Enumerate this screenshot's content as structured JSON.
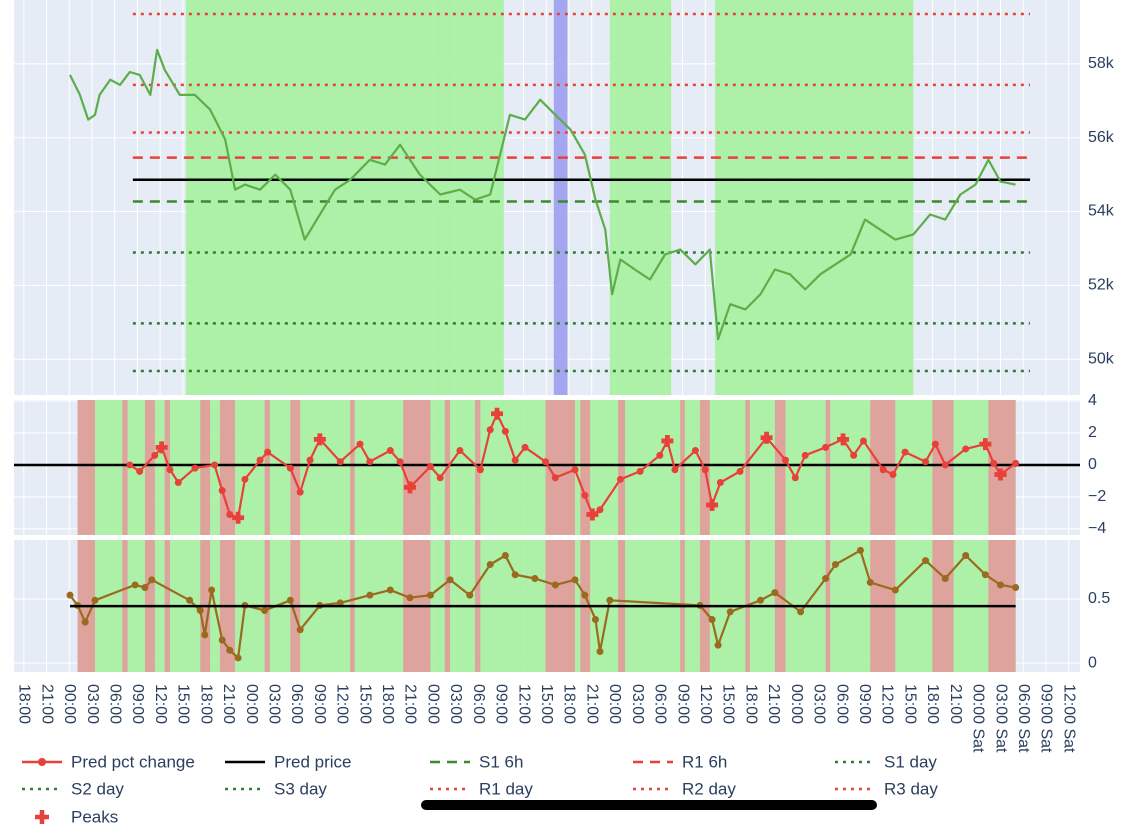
{
  "chart_data": {
    "type": "line",
    "xlim": [
      -1.3,
      139.5
    ],
    "xticks": [
      {
        "value": 0,
        "label": "18:00"
      },
      {
        "value": 3,
        "label": "21:00"
      },
      {
        "value": 6,
        "label": "00:00"
      },
      {
        "value": 9,
        "label": "03:00"
      },
      {
        "value": 12,
        "label": "06:00"
      },
      {
        "value": 15,
        "label": "09:00"
      },
      {
        "value": 18,
        "label": "12:00"
      },
      {
        "value": 21,
        "label": "15:00"
      },
      {
        "value": 24,
        "label": "18:00"
      },
      {
        "value": 27,
        "label": "21:00"
      },
      {
        "value": 30,
        "label": "00:00"
      },
      {
        "value": 33,
        "label": "03:00"
      },
      {
        "value": 36,
        "label": "06:00"
      },
      {
        "value": 39,
        "label": "09:00"
      },
      {
        "value": 42,
        "label": "12:00"
      },
      {
        "value": 45,
        "label": "15:00"
      },
      {
        "value": 48,
        "label": "18:00"
      },
      {
        "value": 51,
        "label": "21:00"
      },
      {
        "value": 54,
        "label": "00:00"
      },
      {
        "value": 57,
        "label": "03:00"
      },
      {
        "value": 60,
        "label": "06:00"
      },
      {
        "value": 63,
        "label": "09:00"
      },
      {
        "value": 66,
        "label": "12:00"
      },
      {
        "value": 69,
        "label": "15:00"
      },
      {
        "value": 72,
        "label": "18:00"
      },
      {
        "value": 75,
        "label": "21:00"
      },
      {
        "value": 78,
        "label": "00:00"
      },
      {
        "value": 81,
        "label": "03:00"
      },
      {
        "value": 84,
        "label": "06:00"
      },
      {
        "value": 87,
        "label": "09:00"
      },
      {
        "value": 90,
        "label": "12:00"
      },
      {
        "value": 93,
        "label": "15:00"
      },
      {
        "value": 96,
        "label": "18:00"
      },
      {
        "value": 99,
        "label": "21:00"
      },
      {
        "value": 102,
        "label": "00:00"
      },
      {
        "value": 105,
        "label": "03:00"
      },
      {
        "value": 108,
        "label": "06:00"
      },
      {
        "value": 111,
        "label": "09:00"
      },
      {
        "value": 114,
        "label": "12:00"
      },
      {
        "value": 117,
        "label": "15:00"
      },
      {
        "value": 120,
        "label": "18:00"
      },
      {
        "value": 123,
        "label": "21:00"
      },
      {
        "value": 126,
        "label": "00:00 Sat"
      },
      {
        "value": 129,
        "label": "03:00 Sat"
      },
      {
        "value": 132,
        "label": "06:00 Sat"
      },
      {
        "value": 135,
        "label": "09:00 Sat"
      },
      {
        "value": 138,
        "label": "12:00 Sat"
      }
    ],
    "ylim": [
      49030,
      59730
    ],
    "yticks": [
      {
        "value": 50000,
        "label": "50k"
      },
      {
        "value": 52000,
        "label": "52k"
      },
      {
        "value": 54000,
        "label": "54k"
      },
      {
        "value": 56000,
        "label": "56k"
      },
      {
        "value": 58000,
        "label": "58k"
      }
    ],
    "y2lim": [
      -4.38,
      4.06
    ],
    "y2ticks": [
      {
        "value": -4,
        "label": "−4"
      },
      {
        "value": -2,
        "label": "−2"
      },
      0,
      2,
      4
    ],
    "y2_zeroline": true,
    "y3lim": [
      -0.07,
      0.961
    ],
    "y3ticks": [
      0,
      0.5
    ],
    "grid": true,
    "regions": [
      {
        "axes": [
          "y"
        ],
        "x": [
          21.4,
          63.4
        ],
        "color": "#a6f2a0"
      },
      {
        "axes": [
          "y"
        ],
        "x": [
          77.4,
          85.5
        ],
        "color": "#a6f2a0"
      },
      {
        "axes": [
          "y"
        ],
        "x": [
          91.3,
          117.5
        ],
        "color": "#a6f2a0"
      },
      {
        "axes": [
          "y"
        ],
        "x": [
          70.0,
          71.8
        ],
        "color": "#9c9ef0"
      },
      {
        "axes": [
          "y2",
          "y3"
        ],
        "x": [
          7.1,
          131.0
        ],
        "color": "#a6f2a0"
      },
      {
        "axes": [
          "y2",
          "y3"
        ],
        "x": [
          7.1,
          9.4
        ],
        "color": "#e39a9a"
      },
      {
        "axes": [
          "y2",
          "y3"
        ],
        "x": [
          13.0,
          13.7
        ],
        "color": "#e39a9a"
      },
      {
        "axes": [
          "y2",
          "y3"
        ],
        "x": [
          16.0,
          17.3
        ],
        "color": "#e39a9a"
      },
      {
        "axes": [
          "y2",
          "y3"
        ],
        "x": [
          18.6,
          19.3
        ],
        "color": "#e39a9a"
      },
      {
        "axes": [
          "y2",
          "y3"
        ],
        "x": [
          23.3,
          24.6
        ],
        "color": "#e39a9a"
      },
      {
        "axes": [
          "y2",
          "y3"
        ],
        "x": [
          25.9,
          27.9
        ],
        "color": "#e39a9a"
      },
      {
        "axes": [
          "y2",
          "y3"
        ],
        "x": [
          31.8,
          32.5
        ],
        "color": "#e39a9a"
      },
      {
        "axes": [
          "y2",
          "y3"
        ],
        "x": [
          35.2,
          36.5
        ],
        "color": "#e39a9a"
      },
      {
        "axes": [
          "y2",
          "y3"
        ],
        "x": [
          43.1,
          43.7
        ],
        "color": "#e39a9a"
      },
      {
        "axes": [
          "y2",
          "y3"
        ],
        "x": [
          50.1,
          53.7
        ],
        "color": "#e39a9a"
      },
      {
        "axes": [
          "y2",
          "y3"
        ],
        "x": [
          55.6,
          56.3
        ],
        "color": "#e39a9a"
      },
      {
        "axes": [
          "y2",
          "y3"
        ],
        "x": [
          59.6,
          60.3
        ],
        "color": "#e39a9a"
      },
      {
        "axes": [
          "y2",
          "y3"
        ],
        "x": [
          68.9,
          72.8
        ],
        "color": "#e39a9a"
      },
      {
        "axes": [
          "y2",
          "y3"
        ],
        "x": [
          73.5,
          74.8
        ],
        "color": "#e39a9a"
      },
      {
        "axes": [
          "y2",
          "y3"
        ],
        "x": [
          78.5,
          79.4
        ],
        "color": "#e39a9a"
      },
      {
        "axes": [
          "y2",
          "y3"
        ],
        "x": [
          86.7,
          87.3
        ],
        "color": "#e39a9a"
      },
      {
        "axes": [
          "y2",
          "y3"
        ],
        "x": [
          89.3,
          90.6
        ],
        "color": "#e39a9a"
      },
      {
        "axes": [
          "y2",
          "y3"
        ],
        "x": [
          95.3,
          95.9
        ],
        "color": "#e39a9a"
      },
      {
        "axes": [
          "y2",
          "y3"
        ],
        "x": [
          99.2,
          100.6
        ],
        "color": "#e39a9a"
      },
      {
        "axes": [
          "y2",
          "y3"
        ],
        "x": [
          105.9,
          106.5
        ],
        "color": "#e39a9a"
      },
      {
        "axes": [
          "y2",
          "y3"
        ],
        "x": [
          111.8,
          115.1
        ],
        "color": "#e39a9a"
      },
      {
        "axes": [
          "y2",
          "y3"
        ],
        "x": [
          120.0,
          122.8
        ],
        "color": "#e39a9a"
      },
      {
        "axes": [
          "y2",
          "y3"
        ],
        "x": [
          127.4,
          131.0
        ],
        "color": "#e39a9a"
      }
    ],
    "series": [
      {
        "name": "Pred pct change",
        "color": "#e8413a",
        "mode": "lines+markers",
        "axis": "y2",
        "x": [
          14.0,
          15.3,
          17.3,
          18.2,
          19.3,
          20.4,
          22.6,
          25.2,
          26.2,
          27.2,
          28.3,
          29.2,
          31.2,
          32.2,
          35.2,
          36.5,
          37.8,
          39.1,
          41.8,
          44.4,
          45.7,
          48.4,
          49.7,
          51.0,
          53.7,
          55.0,
          57.6,
          60.3,
          61.6,
          62.5,
          63.6,
          64.9,
          66.2,
          68.9,
          70.2,
          72.8,
          74.1,
          75.1,
          76.1,
          78.8,
          81.4,
          84.0,
          85.0,
          86.0,
          88.7,
          90.0,
          90.9,
          92.0,
          94.6,
          98.1,
          100.6,
          101.9,
          103.2,
          105.9,
          108.2,
          109.6,
          110.9,
          113.5,
          114.8,
          116.4,
          119.1,
          120.4,
          121.7,
          124.4,
          127.0,
          128.1,
          129.0,
          131.0
        ],
        "values": [
          0,
          -0.4,
          0.6,
          1.1,
          -0.3,
          -1.1,
          -0.2,
          0,
          -1.6,
          -3.1,
          -3.3,
          -0.9,
          0.3,
          0.8,
          -0.2,
          -1.7,
          0.3,
          1.6,
          0.2,
          1.3,
          0.2,
          0.9,
          0.2,
          -1.4,
          -0.1,
          -0.8,
          0.9,
          -0.3,
          2.2,
          3.2,
          2.1,
          0.3,
          1.1,
          0.2,
          -0.8,
          -0.3,
          -1.9,
          -3.1,
          -2.8,
          -0.9,
          -0.4,
          0.6,
          1.5,
          -0.3,
          0.9,
          -0.3,
          -2.5,
          -1.1,
          -0.4,
          1.7,
          0.3,
          -0.8,
          0.6,
          1.1,
          1.6,
          0.6,
          1.5,
          -0.3,
          -0.6,
          0.8,
          0.2,
          1.3,
          0,
          1.0,
          1.3,
          0.1,
          -0.6,
          0.1
        ]
      },
      {
        "name": "Pred price",
        "color": "#000000",
        "dash": "solid",
        "axis": "y",
        "x": [
          14.4,
          132.9
        ],
        "value": 54860
      },
      {
        "name": "S1 6h",
        "color": "#3b8a2e",
        "dash": "dash",
        "axis": "y",
        "x": [
          14.4,
          132.9
        ],
        "value": 54270
      },
      {
        "name": "R1 6h",
        "color": "#e8413a",
        "dash": "dash",
        "axis": "y",
        "x": [
          14.4,
          132.9
        ],
        "value": 55460
      },
      {
        "name": "S1 day",
        "color": "#2e7d32",
        "dash": "dot",
        "axis": "y",
        "x": [
          14.4,
          132.9
        ],
        "value": 52890
      },
      {
        "name": "S2 day",
        "color": "#2e7d32",
        "dash": "dot",
        "axis": "y",
        "x": [
          14.4,
          132.9
        ],
        "value": 50970
      },
      {
        "name": "S3 day",
        "color": "#2e7d32",
        "dash": "dot",
        "axis": "y",
        "x": [
          14.4,
          132.9
        ],
        "value": 49680
      },
      {
        "name": "R1 day",
        "color": "#e8413a",
        "dash": "dot",
        "axis": "y",
        "x": [
          14.4,
          132.9
        ],
        "value": 56140
      },
      {
        "name": "R2 day",
        "color": "#e8413a",
        "dash": "dot",
        "axis": "y",
        "x": [
          14.4,
          132.9
        ],
        "value": 57430
      },
      {
        "name": "R3 day",
        "color": "#e8413a",
        "dash": "dot",
        "axis": "y",
        "x": [
          14.4,
          132.9
        ],
        "value": 59350
      },
      {
        "name": "Peaks",
        "color": "#e8413a",
        "mode": "markers",
        "symbol": "cross",
        "axis": "y2",
        "x": [
          18.2,
          28.3,
          39.1,
          51.0,
          62.5,
          75.1,
          85.0,
          90.9,
          98.1,
          108.2,
          127.0,
          129.0
        ],
        "values": [
          1.1,
          -3.3,
          1.6,
          -1.4,
          3.2,
          -3.1,
          1.5,
          -2.5,
          1.7,
          1.6,
          1.3,
          -0.6
        ]
      },
      {
        "color": "#5cae4a",
        "mode": "lines",
        "axis": "y",
        "x": [
          6.1,
          7.4,
          8.5,
          9.4,
          10.0,
          11.4,
          12.7,
          14.0,
          15.3,
          16.7,
          17.6,
          18.6,
          20.6,
          22.6,
          24.6,
          26.6,
          27.9,
          29.2,
          31.2,
          33.2,
          35.2,
          37.1,
          39.1,
          41.1,
          43.1,
          45.7,
          47.7,
          49.7,
          52.3,
          55.0,
          57.6,
          59.6,
          61.6,
          62.9,
          64.2,
          66.2,
          68.2,
          70.2,
          72.2,
          74.1,
          75.5,
          76.8,
          77.7,
          78.8,
          80.7,
          82.7,
          84.7,
          86.7,
          88.7,
          90.6,
          91.7,
          93.3,
          95.3,
          97.3,
          99.2,
          101.2,
          103.2,
          105.2,
          107.2,
          109.2,
          111.1,
          113.1,
          115.1,
          117.5,
          119.7,
          121.7,
          123.7,
          125.7,
          127.4,
          129.0,
          131.0
        ],
        "values": [
          57700,
          57160,
          56490,
          56620,
          57160,
          57570,
          57430,
          57780,
          57700,
          57160,
          58380,
          57840,
          57160,
          57160,
          56760,
          55950,
          54590,
          54730,
          54590,
          55000,
          54590,
          53240,
          53920,
          54590,
          54860,
          55400,
          55270,
          55810,
          55000,
          54460,
          54590,
          54320,
          54460,
          55540,
          56620,
          56490,
          57030,
          56620,
          56220,
          55540,
          54320,
          53510,
          51760,
          52700,
          52430,
          52160,
          52840,
          52970,
          52570,
          52970,
          50540,
          51490,
          51350,
          51760,
          52430,
          52300,
          51890,
          52300,
          52570,
          52840,
          53780,
          53510,
          53240,
          53380,
          53920,
          53780,
          54460,
          54730,
          55400,
          54810,
          54730
        ]
      },
      {
        "color": "#9a6a1f",
        "mode": "lines+markers",
        "axis": "y3",
        "x": [
          6.1,
          7.1,
          8.1,
          9.4,
          14.7,
          16.0,
          16.9,
          21.9,
          23.3,
          23.9,
          24.8,
          26.2,
          27.2,
          28.3,
          29.2,
          31.8,
          35.2,
          36.5,
          39.1,
          41.8,
          45.7,
          48.4,
          51.0,
          53.7,
          56.3,
          58.9,
          61.6,
          63.6,
          64.9,
          67.5,
          70.2,
          72.8,
          74.1,
          75.5,
          76.1,
          77.4,
          89.3,
          90.9,
          91.7,
          93.3,
          97.3,
          99.2,
          102.6,
          105.9,
          107.2,
          110.5,
          111.8,
          115.1,
          119.1,
          121.7,
          124.4,
          127.0,
          129.0,
          131.0
        ],
        "values": [
          0.53,
          0.45,
          0.32,
          0.49,
          0.61,
          0.59,
          0.65,
          0.49,
          0.41,
          0.22,
          0.57,
          0.18,
          0.1,
          0.04,
          0.45,
          0.41,
          0.49,
          0.26,
          0.45,
          0.47,
          0.53,
          0.57,
          0.51,
          0.53,
          0.65,
          0.53,
          0.77,
          0.84,
          0.69,
          0.66,
          0.61,
          0.65,
          0.53,
          0.34,
          0.09,
          0.49,
          0.45,
          0.34,
          0.14,
          0.4,
          0.49,
          0.55,
          0.4,
          0.66,
          0.77,
          0.88,
          0.63,
          0.57,
          0.8,
          0.66,
          0.84,
          0.69,
          0.61,
          0.59
        ]
      },
      {
        "color": "#000000",
        "dash": "solid",
        "axis": "y3",
        "x": [
          6.1,
          131.0
        ],
        "value": 0.445
      }
    ]
  }
}
